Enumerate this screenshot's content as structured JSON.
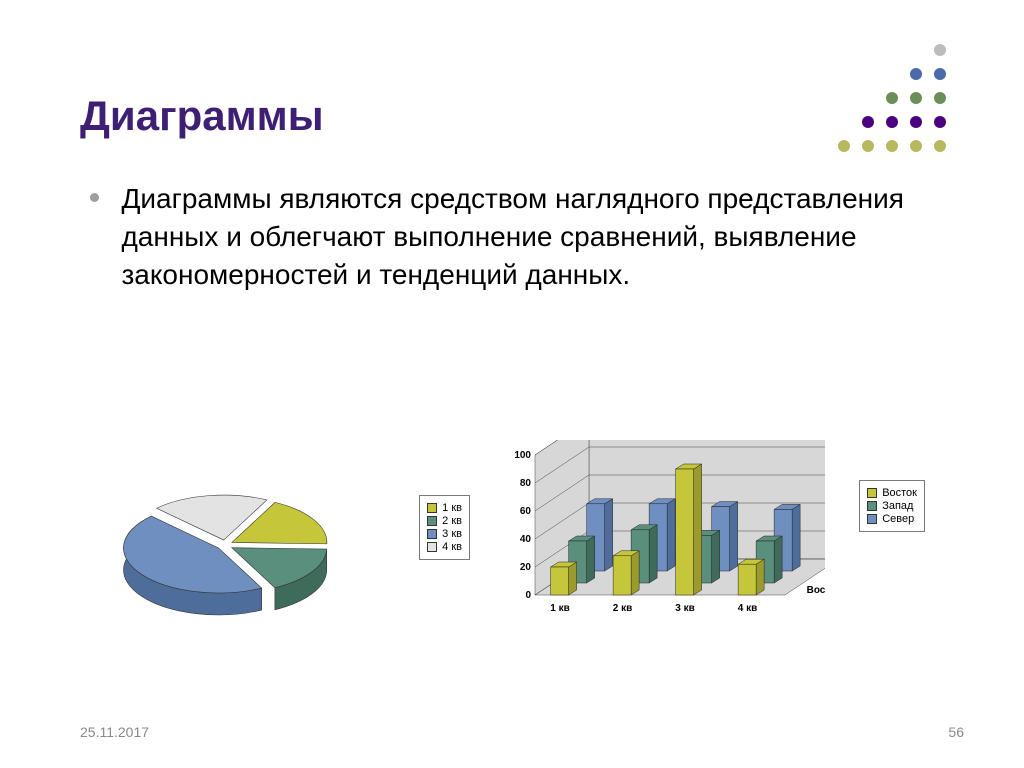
{
  "title": "Диаграммы",
  "bullet_text": "Диаграммы являются средством наглядного представления данных и облегчают выполнение сравнений, выявление закономерностей и тенденций данных.",
  "footer_date": "25.11.2017",
  "footer_page": "56",
  "decoration": {
    "rows": 5,
    "cols": 5,
    "dot_r": 6,
    "spacing": 24,
    "colors_by_row": [
      "#bcbcbc",
      "#4c6aa8",
      "#6b8e5b",
      "#4b0082",
      "#b8b860"
    ]
  },
  "pie_chart": {
    "type": "pie-3d-exploded",
    "legend_items": [
      "1 кв",
      "2 кв",
      "3 кв",
      "4 кв"
    ],
    "legend_colors": [
      "#c6c63a",
      "#5b8f7d",
      "#6f8fc1",
      "#e3e3e3"
    ],
    "slices": [
      {
        "label": "1 кв",
        "value": 18,
        "color": "#c6c63a",
        "side": "#9a9a2e"
      },
      {
        "label": "2 кв",
        "value": 17,
        "color": "#5b8f7d",
        "side": "#3f6b5b"
      },
      {
        "label": "3 кв",
        "value": 45,
        "color": "#6f8fc1",
        "side": "#4f6d9b"
      },
      {
        "label": "4 кв",
        "value": 20,
        "color": "#e3e3e3",
        "side": "#b5b5b5"
      }
    ]
  },
  "bar_chart": {
    "type": "bar-3d-clustered",
    "ymax": 100,
    "ytick_step": 20,
    "yticks": [
      "0",
      "20",
      "40",
      "60",
      "80",
      "100"
    ],
    "x_categories": [
      "1 кв",
      "2 кв",
      "3 кв",
      "4 кв"
    ],
    "depth_label": "Восток",
    "series": [
      {
        "name": "Восток",
        "color": "#c6c63a",
        "side": "#9a9a2e",
        "values": [
          20,
          28,
          90,
          22
        ]
      },
      {
        "name": "Запад",
        "color": "#5b8f7d",
        "side": "#3f6b5b",
        "values": [
          30,
          38,
          34,
          30
        ]
      },
      {
        "name": "Север",
        "color": "#6f8fc1",
        "side": "#4f6d9b",
        "values": [
          48,
          48,
          46,
          44
        ]
      }
    ],
    "legend_items": [
      "Восток",
      "Запад",
      "Север"
    ],
    "legend_colors": [
      "#c6c63a",
      "#5b8f7d",
      "#6f8fc1"
    ],
    "wall_color": "#d7d7d7",
    "grid_color": "#444444",
    "tick_fontsize": 10
  }
}
